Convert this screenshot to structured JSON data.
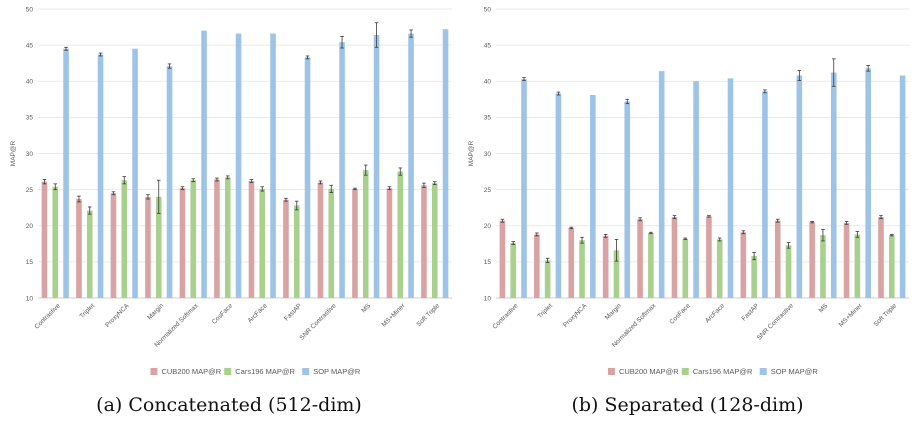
{
  "colors": {
    "CUB200 MAP@R": "#d9a3a3",
    "Cars196 MAP@R": "#a9d18e",
    "SOP MAP@R": "#9dc3e6",
    "error_bar": "#3a3a3a",
    "grid": "#e3e3e3",
    "axis": "#bfbfbf"
  },
  "chart_data": [
    {
      "type": "bar",
      "caption": "(a) Concatenated (512-dim)",
      "title": "",
      "xlabel": "",
      "ylabel": "MAP@R",
      "ylim": [
        10,
        50
      ],
      "yticks": [
        10,
        15,
        20,
        25,
        30,
        35,
        40,
        45,
        50
      ],
      "grid": true,
      "legend_position": "bottom",
      "categories": [
        "Contrastive",
        "Triplet",
        "ProxyNCA",
        "Margin",
        "Normalized Softmax",
        "CosFace",
        "ArcFace",
        "FastAP",
        "SNR Contrastive",
        "MS",
        "MS+Miner",
        "Soft Triple"
      ],
      "series": [
        {
          "name": "CUB200 MAP@R",
          "values": [
            26.1,
            23.7,
            24.5,
            24.0,
            25.2,
            26.4,
            26.2,
            23.6,
            26.0,
            25.1,
            25.2,
            25.6
          ],
          "errors": [
            0.3,
            0.4,
            0.2,
            0.3,
            0.2,
            0.2,
            0.2,
            0.2,
            0.2,
            0.1,
            0.2,
            0.3
          ]
        },
        {
          "name": "Cars196 MAP@R",
          "values": [
            25.4,
            22.1,
            26.3,
            24.0,
            26.3,
            26.7,
            25.1,
            22.8,
            25.1,
            27.7,
            27.5,
            25.9
          ],
          "errors": [
            0.4,
            0.5,
            0.5,
            2.3,
            0.2,
            0.2,
            0.3,
            0.6,
            0.5,
            0.7,
            0.5,
            0.2
          ]
        },
        {
          "name": "SOP MAP@R",
          "values": [
            44.5,
            43.7,
            44.5,
            42.1,
            47.0,
            46.6,
            46.6,
            43.3,
            45.4,
            46.4,
            46.6,
            47.2
          ],
          "errors": [
            0.2,
            0.2,
            0.0,
            0.3,
            0.0,
            0.0,
            0.0,
            0.2,
            0.8,
            1.7,
            0.5,
            0.0
          ]
        }
      ]
    },
    {
      "type": "bar",
      "caption": "(b) Separated (128-dim)",
      "title": "",
      "xlabel": "",
      "ylabel": "MAP@R",
      "ylim": [
        10,
        50
      ],
      "yticks": [
        10,
        15,
        20,
        25,
        30,
        35,
        40,
        45,
        50
      ],
      "grid": true,
      "legend_position": "bottom",
      "categories": [
        "Contrastive",
        "Triplet",
        "ProxyNCA",
        "Margin",
        "Normalized Softmax",
        "CosFace",
        "ArcFace",
        "FastAP",
        "SNR Contrastive",
        "MS",
        "MS+Miner",
        "Soft Triple"
      ],
      "series": [
        {
          "name": "CUB200 MAP@R",
          "values": [
            20.7,
            18.8,
            19.7,
            18.6,
            20.9,
            21.2,
            21.3,
            19.1,
            20.7,
            20.5,
            20.4,
            21.2
          ],
          "errors": [
            0.2,
            0.2,
            0.1,
            0.2,
            0.2,
            0.2,
            0.1,
            0.2,
            0.2,
            0.1,
            0.2,
            0.2
          ]
        },
        {
          "name": "Cars196 MAP@R",
          "values": [
            17.6,
            15.2,
            18.0,
            16.6,
            19.0,
            18.2,
            18.1,
            15.8,
            17.3,
            18.7,
            18.8,
            18.7
          ],
          "errors": [
            0.2,
            0.3,
            0.4,
            1.5,
            0.1,
            0.1,
            0.2,
            0.5,
            0.4,
            0.8,
            0.4,
            0.1
          ]
        },
        {
          "name": "SOP MAP@R",
          "values": [
            40.3,
            38.3,
            38.1,
            37.2,
            41.4,
            40.0,
            40.4,
            38.6,
            40.8,
            41.2,
            41.8,
            40.8
          ],
          "errors": [
            0.2,
            0.2,
            0.0,
            0.3,
            0.0,
            0.0,
            0.0,
            0.2,
            0.7,
            1.9,
            0.4,
            0.0
          ]
        }
      ]
    }
  ]
}
